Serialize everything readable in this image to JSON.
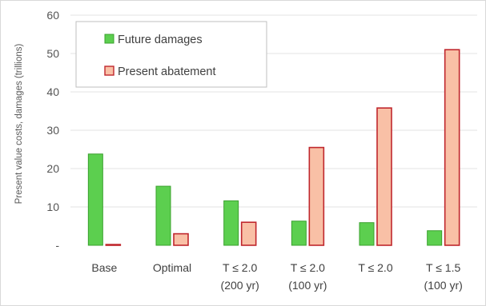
{
  "chart_data": {
    "type": "bar",
    "categories": [
      [
        "Base"
      ],
      [
        "Optimal"
      ],
      [
        "T ≤ 2.0",
        "(200 yr)"
      ],
      [
        "T ≤ 2.0",
        "(100 yr)"
      ],
      [
        "T ≤ 2.0"
      ],
      [
        "T ≤ 1.5",
        "(100 yr)"
      ]
    ],
    "series": [
      {
        "name": "Future damages",
        "color": "#5ccf4f",
        "stroke": "#3aa02e",
        "values": [
          23.8,
          15.4,
          11.6,
          6.3,
          5.9,
          3.8
        ]
      },
      {
        "name": "Present abatement",
        "color": "#f9c0a6",
        "stroke": "#c0272d",
        "values": [
          0.2,
          3.0,
          6.0,
          25.5,
          35.8,
          51.0
        ]
      }
    ],
    "ylabel": "Present value costs, damages (trillions)",
    "ylim": [
      0,
      60
    ],
    "yticks": [
      0,
      10,
      20,
      30,
      40,
      50,
      60
    ],
    "ytick_labels": [
      "-",
      "10",
      "20",
      "30",
      "40",
      "50",
      "60"
    ],
    "grid": true,
    "legend_position": "top-left"
  }
}
